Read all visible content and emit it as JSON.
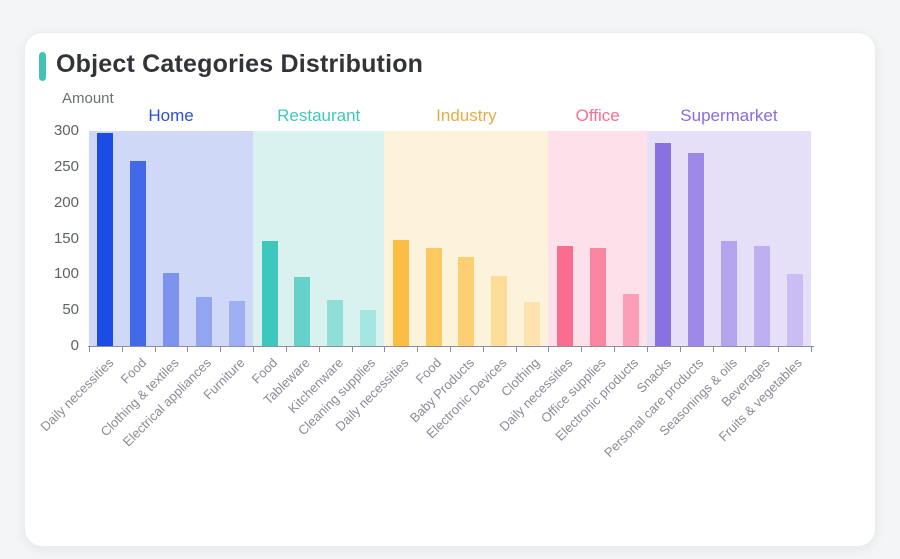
{
  "card": {
    "title": "Object Categories Distribution",
    "accent_color": "#45c2b8"
  },
  "chart_data": {
    "type": "bar",
    "title": "Object Categories Distribution",
    "xlabel": "",
    "ylabel": "Amount",
    "ylim": [
      0,
      300
    ],
    "yticks": [
      0,
      50,
      100,
      150,
      200,
      250,
      300
    ],
    "grid": false,
    "legend_position": "none",
    "axis_color": "#8e8e98",
    "groups": [
      {
        "name": "Home",
        "label_color": "#2b50dd",
        "band_color": "#cfd9f7",
        "categories": [
          "Daily necessities",
          "Food",
          "Clothing & textiles",
          "Electrical appliances",
          "Furniture"
        ],
        "values": [
          297,
          258,
          102,
          69,
          63
        ],
        "bar_colors": [
          "#1b4de4",
          "#4169e8",
          "#7b92ef",
          "#91a5f1",
          "#9daff2"
        ]
      },
      {
        "name": "Restaurant",
        "label_color": "#3ec8be",
        "band_color": "#d9f2ef",
        "categories": [
          "Food",
          "Tableware",
          "Kitchenware",
          "Cleaning supplies"
        ],
        "values": [
          147,
          96,
          64,
          50
        ],
        "bar_colors": [
          "#3ec8bd",
          "#65d2c9",
          "#8fdfd8",
          "#a6e6e0"
        ]
      },
      {
        "name": "Industry",
        "label_color": "#e6ad44",
        "band_color": "#fdf3da",
        "categories": [
          "Daily necessities",
          "Food",
          "Baby Products",
          "Electronic Devices",
          "Clothing"
        ],
        "values": [
          148,
          137,
          124,
          97,
          61
        ],
        "bar_colors": [
          "#fcbe42",
          "#fcc95f",
          "#fdcf72",
          "#fddc97",
          "#fee3af"
        ]
      },
      {
        "name": "Office",
        "label_color": "#fa6e92",
        "band_color": "#fde0e9",
        "categories": [
          "Daily necessities",
          "Office supplies",
          "Electronic products"
        ],
        "values": [
          140,
          137,
          73
        ],
        "bar_colors": [
          "#fa6d8f",
          "#fb86a1",
          "#fc9fb6"
        ]
      },
      {
        "name": "Supermarket",
        "label_color": "#8c6ae0",
        "band_color": "#e5dff8",
        "categories": [
          "Snacks",
          "Personal care products",
          "Seasonings & oils",
          "Beverages",
          "Fruits & vegetables"
        ],
        "values": [
          283,
          270,
          147,
          139,
          100
        ],
        "bar_colors": [
          "#8b70e2",
          "#9f89e8",
          "#b4a4ee",
          "#bdaff0",
          "#c9bdf4"
        ]
      }
    ]
  }
}
